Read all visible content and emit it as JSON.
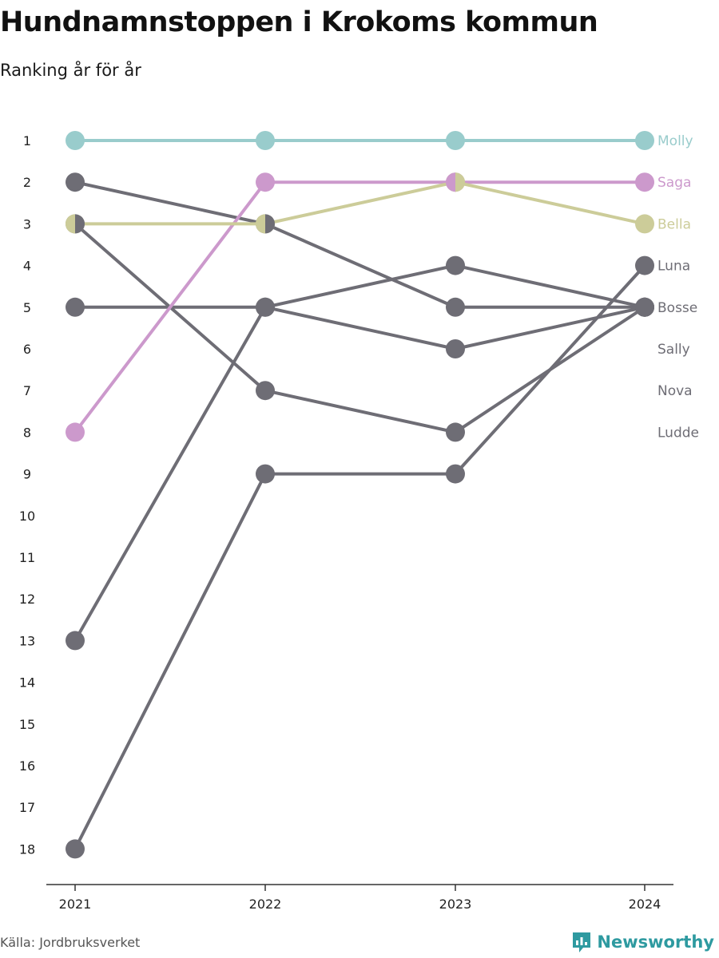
{
  "header": {
    "title": "Hundnamnstoppen i Krokoms kommun",
    "subtitle": "Ranking år för år"
  },
  "footer": {
    "source": "Källa: Jordbruksverket",
    "brand": "Newsworthy"
  },
  "colors": {
    "molly": "#99cccc",
    "saga": "#cc99cc",
    "bella": "#cccc99",
    "other": "#6e6d75",
    "axis": "#333333",
    "brand": "#2e9aa0"
  },
  "chart_data": {
    "type": "line",
    "x": [
      "2021",
      "2022",
      "2023",
      "2024"
    ],
    "ylim": [
      1,
      18
    ],
    "y_ticks": [
      1,
      2,
      3,
      4,
      5,
      6,
      7,
      8,
      9,
      10,
      11,
      12,
      13,
      14,
      15,
      16,
      17,
      18
    ],
    "y_inverted": true,
    "grid": false,
    "series": [
      {
        "name": "Molly",
        "values": [
          1,
          1,
          1,
          1
        ],
        "color_key": "molly",
        "label_color_key": "molly"
      },
      {
        "name": "Saga",
        "values": [
          8,
          2,
          2,
          2
        ],
        "color_key": "saga",
        "label_color_key": "saga"
      },
      {
        "name": "Bella",
        "values": [
          3,
          3,
          2,
          3
        ],
        "color_key": "bella",
        "label_color_key": "bella"
      },
      {
        "name": "Luna",
        "values": [
          18,
          9,
          9,
          4
        ],
        "color_key": "other",
        "label_color_key": "other"
      },
      {
        "name": "Bosse",
        "values": [
          2,
          3,
          5,
          5
        ],
        "color_key": "other",
        "label_color_key": "other"
      },
      {
        "name": "Sally",
        "values": [
          5,
          5,
          6,
          5
        ],
        "color_key": "other",
        "label_color_key": "other"
      },
      {
        "name": "Nova",
        "values": [
          13,
          5,
          4,
          5
        ],
        "color_key": "other",
        "label_color_key": "other"
      },
      {
        "name": "Ludde",
        "values": [
          3,
          7,
          8,
          5
        ],
        "color_key": "other",
        "label_color_key": "other"
      }
    ],
    "end_labels": [
      {
        "name": "Molly",
        "rank": 1,
        "color_key": "molly"
      },
      {
        "name": "Saga",
        "rank": 2,
        "color_key": "saga"
      },
      {
        "name": "Bella",
        "rank": 3,
        "color_key": "bella"
      },
      {
        "name": "Luna",
        "rank": 4,
        "color_key": "other"
      },
      {
        "name": "Bosse",
        "rank": 5,
        "color_key": "other"
      },
      {
        "name": "Sally",
        "rank": 6,
        "color_key": "other"
      },
      {
        "name": "Nova",
        "rank": 7,
        "color_key": "other"
      },
      {
        "name": "Ludde",
        "rank": 8,
        "color_key": "other"
      }
    ]
  }
}
